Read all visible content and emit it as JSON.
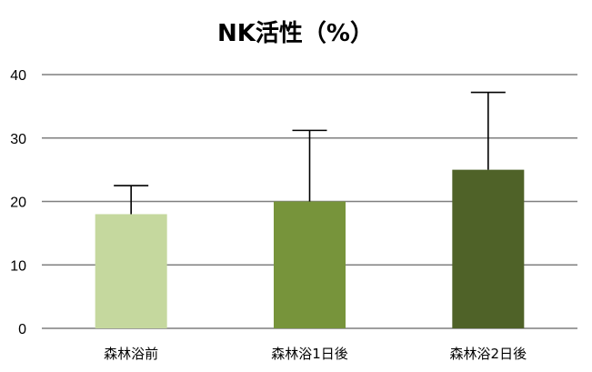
{
  "chart_data": {
    "type": "bar",
    "title": "NK活性（%）",
    "categories": [
      "森林浴前",
      "森林浴1日後",
      "森林浴2日後"
    ],
    "values": [
      18,
      20,
      25
    ],
    "error_plus": [
      4.5,
      11.2,
      12.2
    ],
    "ylim": [
      0,
      40
    ],
    "yticks": [
      0,
      10,
      20,
      30,
      40
    ],
    "grid": true,
    "legend": "none",
    "colors": [
      "#c5d89e",
      "#77943b",
      "#4f6228"
    ]
  }
}
